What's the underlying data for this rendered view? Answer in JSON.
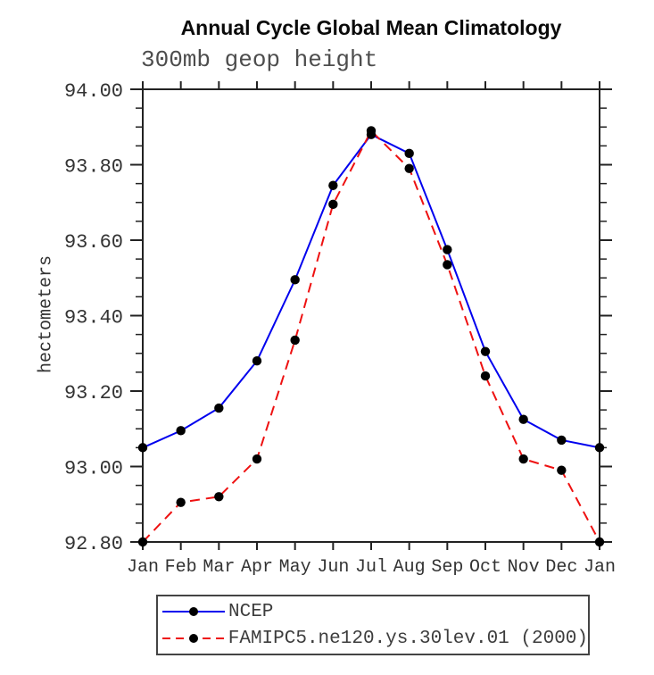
{
  "page": {
    "background": "#ffffff"
  },
  "chart_data": {
    "type": "line",
    "title": "Annual Cycle Global Mean Climatology",
    "subtitle": "300mb geop height",
    "ylabel": "hectometers",
    "xlabel": "",
    "categories": [
      "Jan",
      "Feb",
      "Mar",
      "Apr",
      "May",
      "Jun",
      "Jul",
      "Aug",
      "Sep",
      "Oct",
      "Nov",
      "Dec",
      "Jan"
    ],
    "series": [
      {
        "name": "NCEP",
        "color": "#0000ee",
        "line_style": "solid",
        "marker": "circle",
        "marker_color": "#000000",
        "values": [
          93.05,
          93.095,
          93.155,
          93.28,
          93.495,
          93.745,
          93.88,
          93.83,
          93.575,
          93.305,
          93.125,
          93.07,
          93.05
        ]
      },
      {
        "name": "FAMIPC5.ne120.ys.30lev.01 (2000)",
        "color": "#ee1111",
        "line_style": "dashed",
        "marker": "circle",
        "marker_color": "#000000",
        "values": [
          92.8,
          92.905,
          92.92,
          93.02,
          93.335,
          93.695,
          93.89,
          93.79,
          93.535,
          93.24,
          93.02,
          92.99,
          92.8
        ]
      }
    ],
    "ylim": [
      92.8,
      94.0
    ],
    "ytick_interval": 0.2,
    "yminor_interval": 0.05,
    "ytick_labels": [
      "92.80",
      "93.00",
      "93.20",
      "93.40",
      "93.60",
      "93.80",
      "94.00"
    ],
    "grid": false,
    "legend_position": "bottom-left",
    "axis_color": "#222222",
    "tick_label_color": "#333333"
  }
}
